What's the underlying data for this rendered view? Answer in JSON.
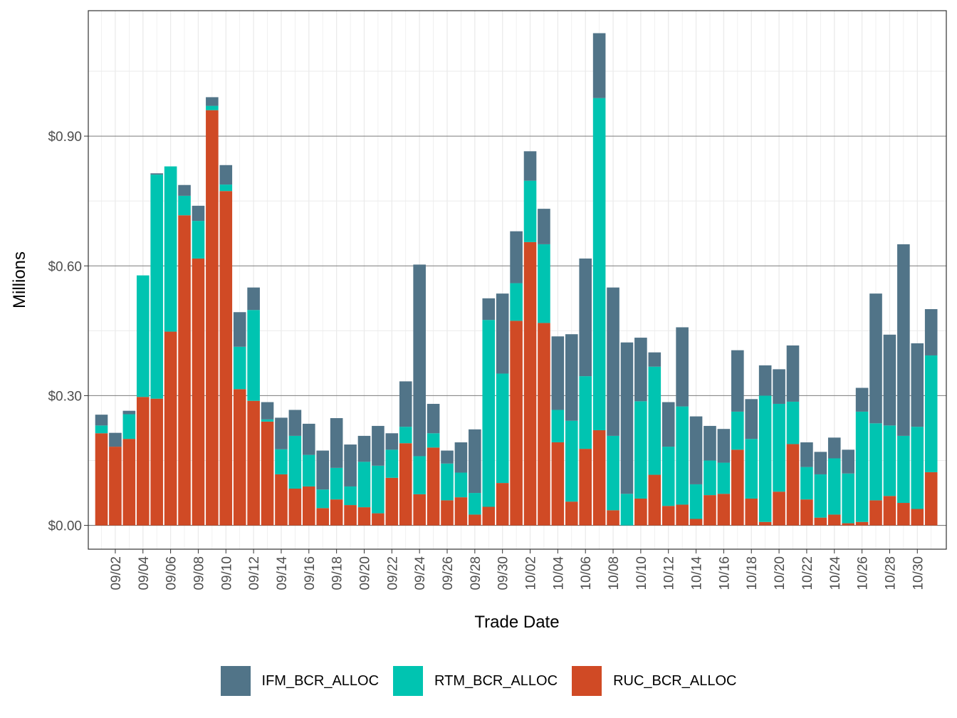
{
  "chart_data": {
    "type": "bar",
    "stacked": true,
    "xlabel": "Trade Date",
    "ylabel": "Millions",
    "ylim": [
      -0.055,
      1.19
    ],
    "yticks": [
      0.0,
      0.3,
      0.6,
      0.9
    ],
    "ytick_labels": [
      "$0.00",
      "$0.30",
      "$0.60",
      "$0.90"
    ],
    "xtick_labels": [
      "09/02",
      "09/04",
      "09/06",
      "09/08",
      "09/10",
      "09/12",
      "09/14",
      "09/16",
      "09/18",
      "09/20",
      "09/22",
      "09/24",
      "09/26",
      "09/28",
      "09/30",
      "10/02",
      "10/04",
      "10/06",
      "10/08",
      "10/10",
      "10/12",
      "10/14",
      "10/16",
      "10/18",
      "10/20",
      "10/22",
      "10/24",
      "10/26",
      "10/28",
      "10/30"
    ],
    "grid": true,
    "legend_position": "bottom",
    "categories": [
      "09/01",
      "09/02",
      "09/03",
      "09/04",
      "09/05",
      "09/06",
      "09/07",
      "09/08",
      "09/09",
      "09/10",
      "09/11",
      "09/12",
      "09/13",
      "09/14",
      "09/15",
      "09/16",
      "09/17",
      "09/18",
      "09/19",
      "09/20",
      "09/21",
      "09/22",
      "09/23",
      "09/24",
      "09/25",
      "09/26",
      "09/27",
      "09/28",
      "09/29",
      "09/30",
      "10/01",
      "10/02",
      "10/03",
      "10/04",
      "10/05",
      "10/06",
      "10/07",
      "10/08",
      "10/09",
      "10/10",
      "10/11",
      "10/12",
      "10/13",
      "10/14",
      "10/15",
      "10/16",
      "10/17",
      "10/18",
      "10/19",
      "10/20",
      "10/21",
      "10/22",
      "10/23",
      "10/24",
      "10/25",
      "10/26",
      "10/27",
      "10/28",
      "10/29",
      "10/30",
      "10/31"
    ],
    "series": [
      {
        "name": "RUC_BCR_ALLOC",
        "color": "#d04a25",
        "values": [
          0.213,
          0.182,
          0.2,
          0.297,
          0.293,
          0.448,
          0.717,
          0.617,
          0.96,
          0.773,
          0.315,
          0.288,
          0.24,
          0.118,
          0.085,
          0.09,
          0.04,
          0.06,
          0.047,
          0.042,
          0.028,
          0.11,
          0.19,
          0.072,
          0.18,
          0.058,
          0.065,
          0.025,
          0.043,
          0.098,
          0.473,
          0.655,
          0.468,
          0.192,
          0.055,
          0.177,
          0.22,
          0.035,
          0.0,
          0.062,
          0.117,
          0.045,
          0.048,
          0.015,
          0.07,
          0.073,
          0.175,
          0.062,
          0.008,
          0.078,
          0.188,
          0.06,
          0.018,
          0.025,
          0.005,
          0.008,
          0.058,
          0.068,
          0.052,
          0.038,
          0.123
        ]
      },
      {
        "name": "RTM_BCR_ALLOC",
        "color": "#00c4b1",
        "values": [
          0.018,
          0.0,
          0.057,
          0.281,
          0.518,
          0.382,
          0.045,
          0.087,
          0.01,
          0.015,
          0.098,
          0.21,
          0.005,
          0.058,
          0.122,
          0.073,
          0.043,
          0.073,
          0.043,
          0.105,
          0.11,
          0.065,
          0.038,
          0.088,
          0.033,
          0.085,
          0.057,
          0.05,
          0.432,
          0.253,
          0.087,
          0.142,
          0.182,
          0.075,
          0.187,
          0.168,
          0.768,
          0.172,
          0.073,
          0.225,
          0.25,
          0.137,
          0.227,
          0.08,
          0.08,
          0.072,
          0.088,
          0.138,
          0.292,
          0.203,
          0.098,
          0.075,
          0.1,
          0.13,
          0.115,
          0.255,
          0.178,
          0.163,
          0.155,
          0.19,
          0.27
        ]
      },
      {
        "name": "IFM_BCR_ALLOC",
        "color": "#517488",
        "values": [
          0.025,
          0.032,
          0.008,
          0.0,
          0.003,
          0.0,
          0.025,
          0.035,
          0.02,
          0.045,
          0.08,
          0.052,
          0.04,
          0.073,
          0.06,
          0.072,
          0.09,
          0.115,
          0.097,
          0.06,
          0.092,
          0.038,
          0.105,
          0.443,
          0.068,
          0.03,
          0.07,
          0.147,
          0.05,
          0.185,
          0.12,
          0.068,
          0.082,
          0.17,
          0.2,
          0.272,
          0.15,
          0.343,
          0.35,
          0.147,
          0.033,
          0.103,
          0.183,
          0.157,
          0.08,
          0.078,
          0.142,
          0.092,
          0.07,
          0.08,
          0.13,
          0.057,
          0.052,
          0.048,
          0.055,
          0.055,
          0.3,
          0.21,
          0.443,
          0.193,
          0.107
        ]
      }
    ]
  }
}
